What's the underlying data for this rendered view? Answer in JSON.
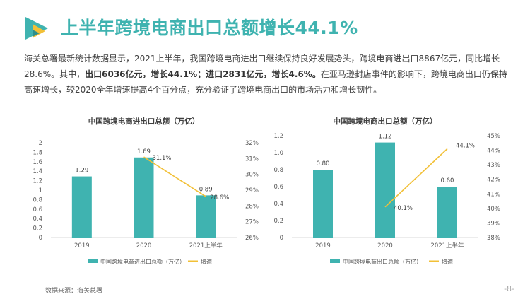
{
  "header": {
    "title": "上半年跨境电商出口总额增长44.1%"
  },
  "summary": {
    "part1": "海关总署最新统计数据显示，2021上半年，我国跨境电商进出口继续保持良好发展势头，跨境电商进出口8867亿元，同比增长28.6%。其中，",
    "bold1": "出口6036亿元，增长44.1%；进口2831亿元，增长4.6%。",
    "part2": "在亚马逊封店事件的影响下，跨境电商出口仍保持高速增长，较2020全年增速提高4个百分点，充分验证了跨境电商出口的市场活力和增长韧性。"
  },
  "colors": {
    "bar": "#3fb3b0",
    "line": "#f2c037",
    "title": "#3fb3b0",
    "logo_teal": "#3fb3b0",
    "logo_yellow": "#f2c037"
  },
  "chart_data": [
    {
      "type": "bar",
      "title": "中国跨境电商进出口总额（万亿）",
      "categories": [
        "2019",
        "2020",
        "2021上半年"
      ],
      "series": [
        {
          "name": "中国跨境电商进出口总额（万亿）",
          "type": "bar",
          "axis": "left",
          "values": [
            1.29,
            1.69,
            0.89
          ],
          "labels": [
            "1.29",
            "1.69",
            "0.89"
          ]
        },
        {
          "name": "增速",
          "type": "line",
          "axis": "right",
          "values": [
            null,
            31.1,
            28.6
          ],
          "labels": [
            "",
            "31.1%",
            "28.6%"
          ]
        }
      ],
      "y_left": {
        "min": 0,
        "max": 2,
        "step": 0.2,
        "ticks": [
          "0",
          "0.2",
          "0.4",
          "0.6",
          "0.8",
          "1",
          "1.2",
          "1.4",
          "1.6",
          "1.8",
          "2"
        ]
      },
      "y_right": {
        "min": 26,
        "max": 32,
        "step": 1,
        "ticks": [
          "26%",
          "27%",
          "28%",
          "29%",
          "30%",
          "31%",
          "32%"
        ]
      },
      "legend": "bottom"
    },
    {
      "type": "bar",
      "title": "中国跨境电商出口总额（万亿）",
      "categories": [
        "2019",
        "2020",
        "2021上半年"
      ],
      "series": [
        {
          "name": "中国跨境电商出口总额（万亿）",
          "type": "bar",
          "axis": "left",
          "values": [
            0.8,
            1.12,
            0.6
          ],
          "labels": [
            "0.80",
            "1.12",
            "0.60"
          ]
        },
        {
          "name": "增速",
          "type": "line",
          "axis": "right",
          "values": [
            null,
            40.1,
            44.1
          ],
          "labels": [
            "",
            "40.1%",
            "44.1%"
          ]
        }
      ],
      "y_left": {
        "min": 0,
        "max": 1.2,
        "step": 0.2,
        "ticks": [
          "0",
          "0.2",
          "0.4",
          "0.6",
          "0.8",
          "1.0",
          "1.2"
        ]
      },
      "y_right": {
        "min": 38,
        "max": 45,
        "step": 1,
        "ticks": [
          "38%",
          "39%",
          "40%",
          "41%",
          "42%",
          "43%",
          "44%",
          "45%"
        ]
      },
      "legend": "bottom"
    }
  ],
  "footer": {
    "source": "数据来源：海关总署",
    "page": "-8-"
  }
}
